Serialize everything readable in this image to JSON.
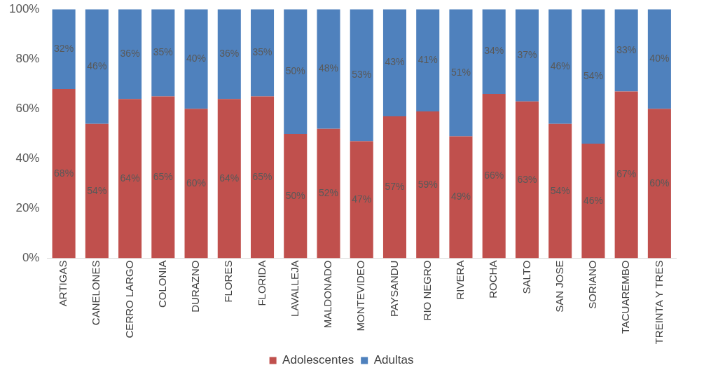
{
  "chart_data": {
    "type": "bar",
    "stacked": true,
    "legend": "bottom",
    "grid": false,
    "categories": [
      "ARTIGAS",
      "CANELONES",
      "CERRO LARGO",
      "COLONIA",
      "DURAZNO",
      "FLORES",
      "FLORIDA",
      "LAVALLEJA",
      "MALDONADO",
      "MONTEVIDEO",
      "PAYSANDU",
      "RIO NEGRO",
      "RIVERA",
      "ROCHA",
      "SALTO",
      "SAN JOSE",
      "SORIANO",
      "TACUAREMBO",
      "TREINTA Y TRES"
    ],
    "ylim": [
      0,
      100
    ],
    "yticks": [
      {
        "value": 0,
        "label": "0%"
      },
      {
        "value": 20,
        "label": "20%"
      },
      {
        "value": 40,
        "label": "40%"
      },
      {
        "value": 60,
        "label": "60%"
      },
      {
        "value": 80,
        "label": "80%"
      },
      {
        "value": 100,
        "label": "100%"
      }
    ],
    "series": [
      {
        "name": "Adolescentes",
        "color": "#c0504d",
        "values": [
          68,
          54,
          64,
          65,
          60,
          64,
          65,
          50,
          52,
          47,
          57,
          59,
          49,
          66,
          63,
          54,
          46,
          67,
          60
        ],
        "value_labels": [
          "68%",
          "54%",
          "64%",
          "65%",
          "60%",
          "64%",
          "65%",
          "50%",
          "52%",
          "47%",
          "57%",
          "59%",
          "49%",
          "66%",
          "63%",
          "54%",
          "46%",
          "67%",
          "60%"
        ]
      },
      {
        "name": "Adultas",
        "color": "#4f81bd",
        "values": [
          32,
          46,
          36,
          35,
          40,
          36,
          35,
          50,
          48,
          53,
          43,
          41,
          51,
          34,
          37,
          46,
          54,
          33,
          40
        ],
        "value_labels": [
          "32%",
          "46%",
          "36%",
          "35%",
          "40%",
          "36%",
          "35%",
          "50%",
          "48%",
          "53%",
          "43%",
          "41%",
          "51%",
          "34%",
          "37%",
          "46%",
          "54%",
          "33%",
          "40%"
        ]
      }
    ]
  }
}
